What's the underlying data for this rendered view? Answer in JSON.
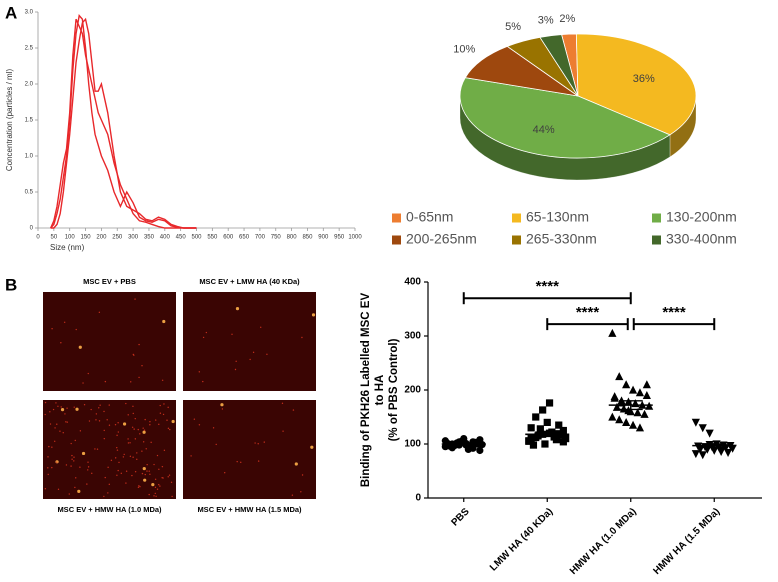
{
  "panel_labels": [
    "A",
    "B"
  ],
  "chart_data": [
    {
      "type": "line",
      "x_label": "Size (nm)",
      "y_label": "Concentration (particles / ml)",
      "x": [
        40,
        50,
        60,
        70,
        80,
        90,
        100,
        110,
        120,
        130,
        140,
        150,
        160,
        170,
        180,
        190,
        200,
        220,
        240,
        260,
        280,
        300,
        320,
        340,
        360,
        380,
        400,
        420,
        440,
        460,
        480,
        500
      ],
      "series": [
        {
          "color": "#e8282b",
          "values": [
            0,
            0.05,
            0.2,
            0.4,
            0.7,
            1.0,
            1.5,
            2.2,
            2.7,
            2.95,
            2.9,
            2.5,
            2.0,
            1.6,
            1.3,
            1.15,
            1.0,
            0.8,
            0.5,
            0.3,
            0.5,
            0.35,
            0.15,
            0.1,
            0.08,
            0.12,
            0.1,
            0.03,
            0.01,
            0,
            0,
            0
          ]
        },
        {
          "color": "#e8282b",
          "values": [
            0,
            0,
            0.05,
            0.2,
            0.5,
            0.9,
            1.3,
            1.8,
            2.3,
            2.6,
            2.85,
            2.9,
            2.7,
            2.3,
            1.9,
            1.9,
            2.0,
            1.6,
            1.0,
            0.5,
            0.3,
            0.25,
            0.2,
            0.12,
            0.1,
            0.15,
            0.12,
            0.05,
            0.02,
            0,
            0,
            0
          ]
        },
        {
          "color": "#e8282b",
          "values": [
            0,
            0.1,
            0.3,
            0.6,
            0.9,
            1.1,
            1.6,
            2.4,
            2.9,
            2.8,
            2.7,
            2.4,
            2.2,
            2.0,
            1.8,
            1.6,
            1.5,
            1.3,
            0.9,
            0.6,
            0.4,
            0.2,
            0.1,
            0.08,
            0.05,
            0.02,
            0,
            0,
            0,
            0,
            0,
            0
          ]
        }
      ],
      "xlim": [
        0,
        1000
      ],
      "xticks": [
        0,
        50,
        100,
        150,
        200,
        250,
        300,
        350,
        400,
        450,
        500,
        550,
        600,
        650,
        700,
        750,
        800,
        850,
        900,
        950,
        1000
      ],
      "ylim": [
        0,
        3
      ],
      "yticks": [
        0,
        0.5,
        {
          "value": 1,
          "label": "1.0"
        },
        1.5,
        {
          "value": 2,
          "label": "2.0"
        },
        2.5,
        {
          "value": 3,
          "label": "3.0"
        }
      ]
    },
    {
      "type": "pie",
      "categories": [
        "0-65nm",
        "65-130nm",
        "130-200nm",
        "200-265nm",
        "265-330nm",
        "330-400nm"
      ],
      "values": [
        2,
        36,
        44,
        10,
        5,
        3
      ],
      "value_labels": [
        "2%",
        "36%",
        "44%",
        "10%",
        "5%",
        "3%"
      ],
      "colors": [
        "#ed7d31",
        "#f4b920",
        "#70ad47",
        "#9e480e",
        "#997300",
        "#43682b"
      ]
    },
    {
      "type": "strip",
      "y_label": [
        "Binding of PKH26 Labelled MSC EV",
        "to HA",
        "(% of PBS Control)"
      ],
      "categories": [
        "PBS",
        "LMW HA (40 KDa)",
        "HMW HA (1.0 MDa)",
        "HMW HA (1.5 MDa)"
      ],
      "markers": [
        "circle",
        "square",
        "triangle-up",
        "triangle-down"
      ],
      "points": [
        [
          95,
          100,
          104,
          98,
          92,
          108,
          101,
          97,
          105,
          90,
          103,
          99,
          96,
          102,
          110,
          94,
          100,
          106,
          93,
          98,
          101,
          104,
          88,
          97
        ],
        [
          105,
          112,
          118,
          120,
          108,
          125,
          130,
          115,
          100,
          122,
          135,
          110,
          98,
          128,
          140,
          113,
          117,
          106,
          150,
          163,
          176,
          119,
          104,
          111
        ],
        [
          305,
          225,
          210,
          200,
          195,
          190,
          185,
          180,
          178,
          175,
          172,
          170,
          168,
          165,
          160,
          158,
          155,
          150,
          145,
          140,
          135,
          130,
          210,
          188,
          176,
          162
        ],
        [
          140,
          130,
          120,
          100,
          98,
          97,
          96,
          95,
          95,
          94,
          93,
          92,
          91,
          90,
          88,
          86,
          84,
          82,
          80,
          99
        ]
      ],
      "means": [
        100,
        118,
        172,
        97
      ],
      "sems": [
        2,
        4,
        8,
        3
      ],
      "annotations": [
        {
          "text": "****",
          "from": 0,
          "to": 2,
          "y": 370
        },
        {
          "text": "****",
          "from": 1,
          "to": 2,
          "y": 322
        },
        {
          "text": "****",
          "from": 2,
          "to": 3,
          "y": 322
        }
      ],
      "ylim": [
        0,
        400
      ],
      "yticks": [
        0,
        100,
        200,
        300,
        400
      ]
    }
  ],
  "images": [
    "MSC EV + PBS",
    "MSC EV + LMW HA (40 KDa)",
    "MSC EV + HMW HA (1.0 MDa)",
    "MSC EV + HMW HA (1.5 MDa)"
  ]
}
